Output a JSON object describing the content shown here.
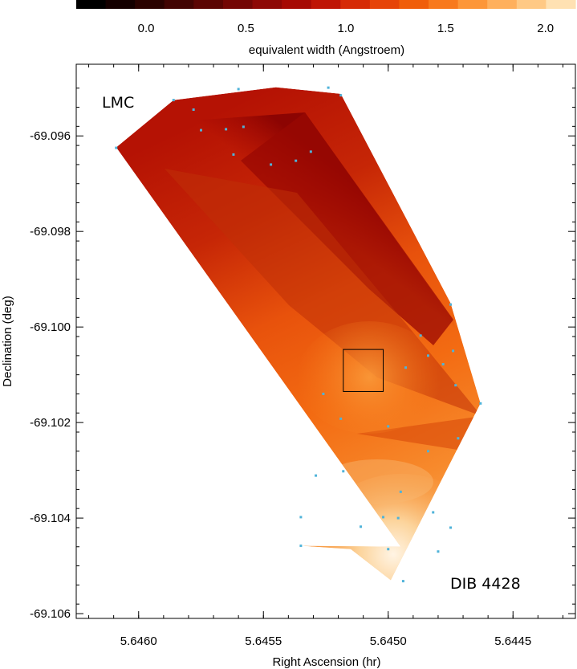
{
  "colorbar": {
    "label": "equivalent width (Angstroem)",
    "range": [
      -0.35,
      2.15
    ],
    "tick_labels": [
      "0.0",
      "0.5",
      "1.0",
      "1.5",
      "2.0"
    ],
    "tick_values": [
      0.0,
      0.5,
      1.0,
      1.5,
      2.0
    ],
    "colors": [
      "#000000",
      "#140000",
      "#2a0200",
      "#420402",
      "#5b0503",
      "#740604",
      "#8e0805",
      "#a60a04",
      "#bf1505",
      "#d62a06",
      "#e64408",
      "#f05e0a",
      "#f8791c",
      "#fd9638",
      "#ffb05d",
      "#ffc985",
      "#ffe1b2"
    ]
  },
  "chart_data": {
    "type": "heatmap",
    "title": "",
    "xlabel": "Right Ascension (hr)",
    "ylabel": "Declination (deg)",
    "xlim": [
      5.64625,
      5.64425
    ],
    "ylim": [
      -69.1061,
      -69.0945
    ],
    "x_ticks": [
      5.646,
      5.6455,
      5.645,
      5.6445
    ],
    "x_tick_labels": [
      "5.6460",
      "5.6455",
      "5.6450",
      "5.6445"
    ],
    "y_ticks": [
      -69.096,
      -69.098,
      -69.1,
      -69.102,
      -69.104,
      -69.106
    ],
    "y_tick_labels": [
      "-69.096",
      "-69.098",
      "-69.100",
      "-69.102",
      "-69.104",
      "-69.106"
    ],
    "annotations": [
      "LMC",
      "DIB 4428"
    ],
    "grid": false,
    "star_color": "#4fb3d9",
    "field_box": {
      "ra": [
        5.64518,
        5.64502
      ],
      "dec": [
        -69.10047,
        -69.10135
      ]
    },
    "hull": [
      [
        5.64609,
        -69.09624
      ],
      [
        5.64586,
        -69.09525
      ],
      [
        5.64545,
        -69.09498
      ],
      [
        5.64519,
        -69.09512
      ],
      [
        5.64475,
        -69.0995
      ],
      [
        5.64463,
        -69.1016
      ],
      [
        5.64499,
        -69.1053
      ],
      [
        5.64515,
        -69.10465
      ],
      [
        5.64535,
        -69.10458
      ],
      [
        5.64495,
        -69.1046
      ]
    ],
    "stars": [
      {
        "ra": 5.64586,
        "dec": -69.09525,
        "ew": 0.75
      },
      {
        "ra": 5.64578,
        "dec": -69.09545,
        "ew": 0.8
      },
      {
        "ra": 5.6456,
        "dec": -69.09502,
        "ew": 0.85
      },
      {
        "ra": 5.64524,
        "dec": -69.09499,
        "ew": 0.8
      },
      {
        "ra": 5.64519,
        "dec": -69.09515,
        "ew": 0.85
      },
      {
        "ra": 5.64609,
        "dec": -69.09625,
        "ew": 1.25
      },
      {
        "ra": 5.64575,
        "dec": -69.09588,
        "ew": 1.1
      },
      {
        "ra": 5.64565,
        "dec": -69.09586,
        "ew": 1.05
      },
      {
        "ra": 5.64558,
        "dec": -69.09581,
        "ew": 1.0
      },
      {
        "ra": 5.64562,
        "dec": -69.09639,
        "ew": 1.1
      },
      {
        "ra": 5.64547,
        "dec": -69.0966,
        "ew": 1.0
      },
      {
        "ra": 5.64537,
        "dec": -69.09652,
        "ew": 1.05
      },
      {
        "ra": 5.64531,
        "dec": -69.09633,
        "ew": 0.95
      },
      {
        "ra": 5.64475,
        "dec": -69.09953,
        "ew": 0.8
      },
      {
        "ra": 5.64487,
        "dec": -69.10018,
        "ew": 1.3
      },
      {
        "ra": 5.64484,
        "dec": -69.1006,
        "ew": 1.0
      },
      {
        "ra": 5.64474,
        "dec": -69.1005,
        "ew": 0.9
      },
      {
        "ra": 5.64478,
        "dec": -69.10078,
        "ew": 0.95
      },
      {
        "ra": 5.64473,
        "dec": -69.10122,
        "ew": 1.1
      },
      {
        "ra": 5.64463,
        "dec": -69.1016,
        "ew": 1.2
      },
      {
        "ra": 5.64493,
        "dec": -69.10085,
        "ew": 1.4
      },
      {
        "ra": 5.64526,
        "dec": -69.1014,
        "ew": 1.45
      },
      {
        "ra": 5.64519,
        "dec": -69.10192,
        "ew": 1.55
      },
      {
        "ra": 5.645,
        "dec": -69.10208,
        "ew": 1.2
      },
      {
        "ra": 5.64472,
        "dec": -69.10233,
        "ew": 1.5
      },
      {
        "ra": 5.64484,
        "dec": -69.1026,
        "ew": 1.55
      },
      {
        "ra": 5.64518,
        "dec": -69.10302,
        "ew": 1.5
      },
      {
        "ra": 5.64529,
        "dec": -69.10311,
        "ew": 1.45
      },
      {
        "ra": 5.64495,
        "dec": -69.10345,
        "ew": 1.9
      },
      {
        "ra": 5.64482,
        "dec": -69.10388,
        "ew": 1.85
      },
      {
        "ra": 5.64475,
        "dec": -69.1042,
        "ew": 1.6
      },
      {
        "ra": 5.64496,
        "dec": -69.104,
        "ew": 1.9
      },
      {
        "ra": 5.64502,
        "dec": -69.10398,
        "ew": 1.85
      },
      {
        "ra": 5.64511,
        "dec": -69.10418,
        "ew": 1.8
      },
      {
        "ra": 5.64535,
        "dec": -69.10398,
        "ew": 1.55
      },
      {
        "ra": 5.64535,
        "dec": -69.10458,
        "ew": 1.45
      },
      {
        "ra": 5.645,
        "dec": -69.10465,
        "ew": 1.9
      },
      {
        "ra": 5.6448,
        "dec": -69.1047,
        "ew": 2.1
      },
      {
        "ra": 5.64494,
        "dec": -69.10532,
        "ew": 2.15
      }
    ]
  }
}
